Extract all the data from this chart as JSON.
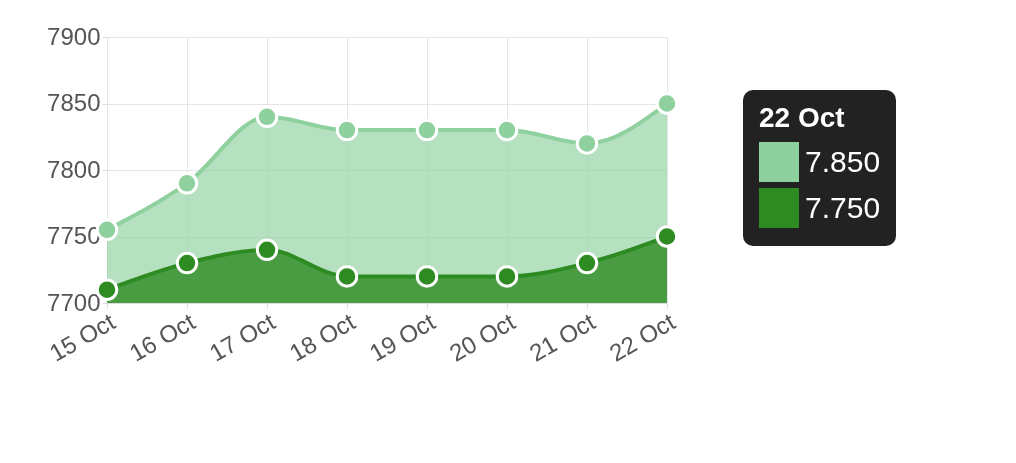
{
  "chart_data": {
    "type": "area",
    "categories": [
      "15 Oct",
      "16 Oct",
      "17 Oct",
      "18 Oct",
      "19 Oct",
      "20 Oct",
      "21 Oct",
      "22 Oct"
    ],
    "series": [
      {
        "color": "#8fd19e",
        "values": [
          7755,
          7790,
          7840,
          7830,
          7830,
          7830,
          7820,
          7850
        ]
      },
      {
        "color": "#2e8b22",
        "values": [
          7710,
          7730,
          7740,
          7720,
          7720,
          7720,
          7730,
          7750
        ]
      }
    ],
    "ylim": [
      7700,
      7900
    ],
    "yticks": [
      7700,
      7750,
      7800,
      7850,
      7900
    ],
    "grid": true,
    "marker": "circle",
    "annotations": [
      "22 Oct",
      "7.850",
      "7.750"
    ]
  }
}
